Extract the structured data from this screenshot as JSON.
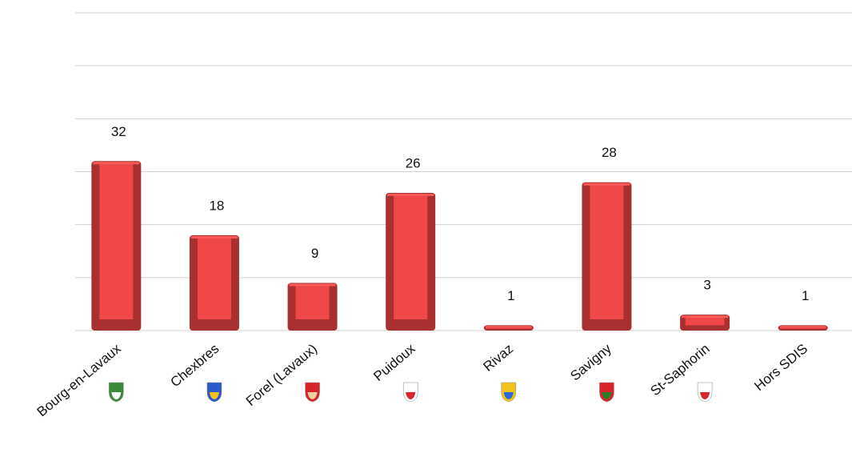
{
  "chart_data": {
    "type": "bar",
    "categories": [
      "Bourg-en-Lavaux",
      "Chexbres",
      "Forel (Lavaux)",
      "Puidoux",
      "Rivaz",
      "Savigny",
      "St-Saphorin",
      "Hors SDIS"
    ],
    "values": [
      32,
      18,
      9,
      26,
      1,
      28,
      3,
      1
    ],
    "color": "#f04848",
    "ylim": [
      0,
      60
    ],
    "yticks": [
      0,
      10,
      20,
      30,
      40,
      50,
      60
    ],
    "grid": true
  }
}
